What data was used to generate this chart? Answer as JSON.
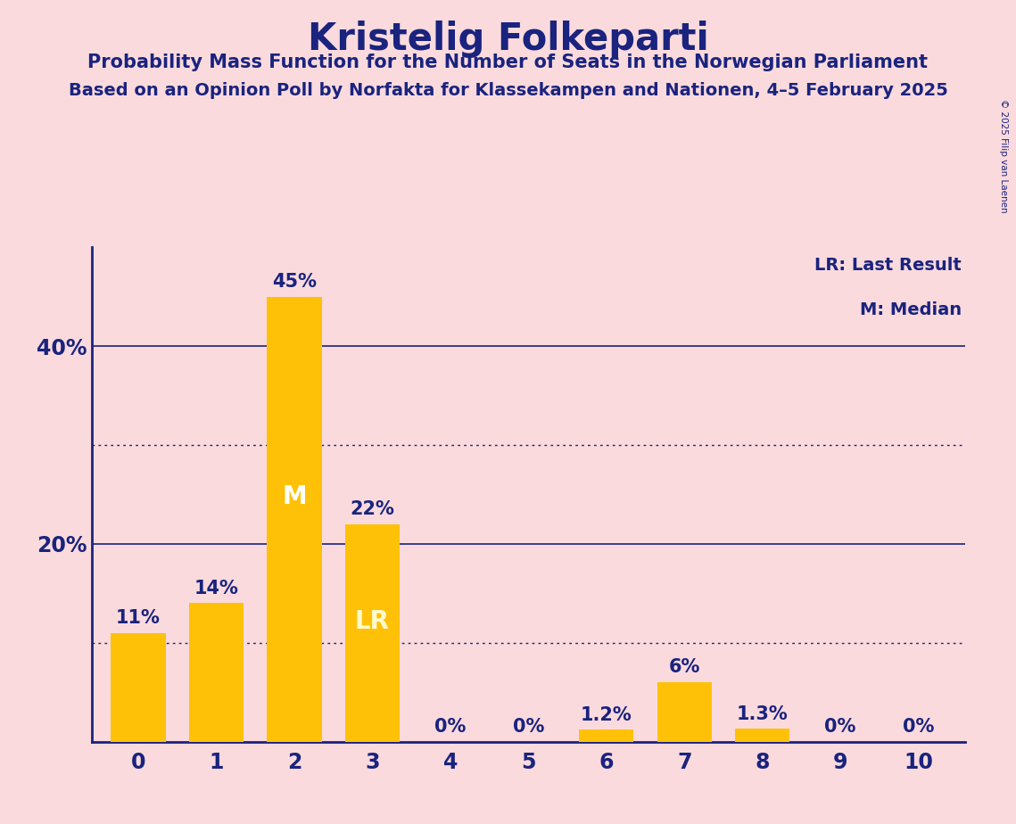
{
  "title": "Kristelig Folkeparti",
  "subtitle1": "Probability Mass Function for the Number of Seats in the Norwegian Parliament",
  "subtitle2": "Based on an Opinion Poll by Norfakta for Klassekampen and Nationen, 4–5 February 2025",
  "copyright": "© 2025 Filip van Laenen",
  "categories": [
    0,
    1,
    2,
    3,
    4,
    5,
    6,
    7,
    8,
    9,
    10
  ],
  "values": [
    11,
    14,
    45,
    22,
    0,
    0,
    1.2,
    6,
    1.3,
    0,
    0
  ],
  "bar_color": "#FFC107",
  "background_color": "#FADADD",
  "text_color": "#1a237e",
  "bar_labels": [
    "11%",
    "14%",
    "45%",
    "22%",
    "0%",
    "0%",
    "1.2%",
    "6%",
    "1.3%",
    "0%",
    "0%"
  ],
  "median_bar": 2,
  "lr_bar": 3,
  "median_label": "M",
  "lr_label": "LR",
  "legend_lr": "LR: Last Result",
  "legend_m": "M: Median",
  "ylim_max": 50,
  "solid_gridlines": [
    20,
    40
  ],
  "dotted_gridlines": [
    30,
    10
  ]
}
